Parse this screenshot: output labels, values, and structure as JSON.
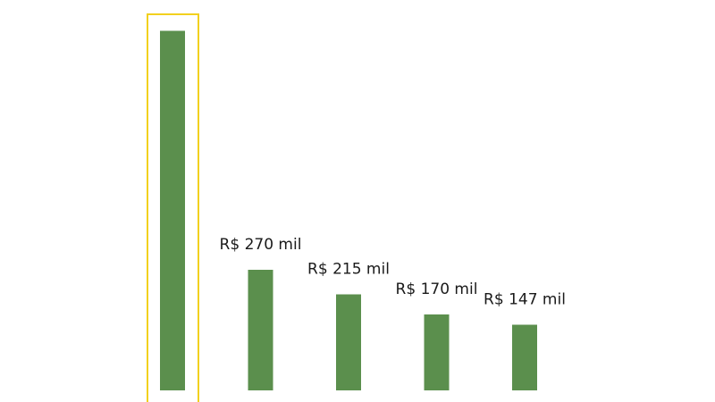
{
  "chart_data": {
    "type": "bar",
    "values": [
      805,
      270,
      215,
      170,
      147
    ],
    "value_labels": [
      null,
      "R$ 270 mil",
      "R$ 215 mil",
      "R$ 170 mil",
      "R$ 147 mil"
    ],
    "color": "#5b8f4d",
    "highlight_index": 0,
    "highlight_color": "#f2d01e"
  }
}
